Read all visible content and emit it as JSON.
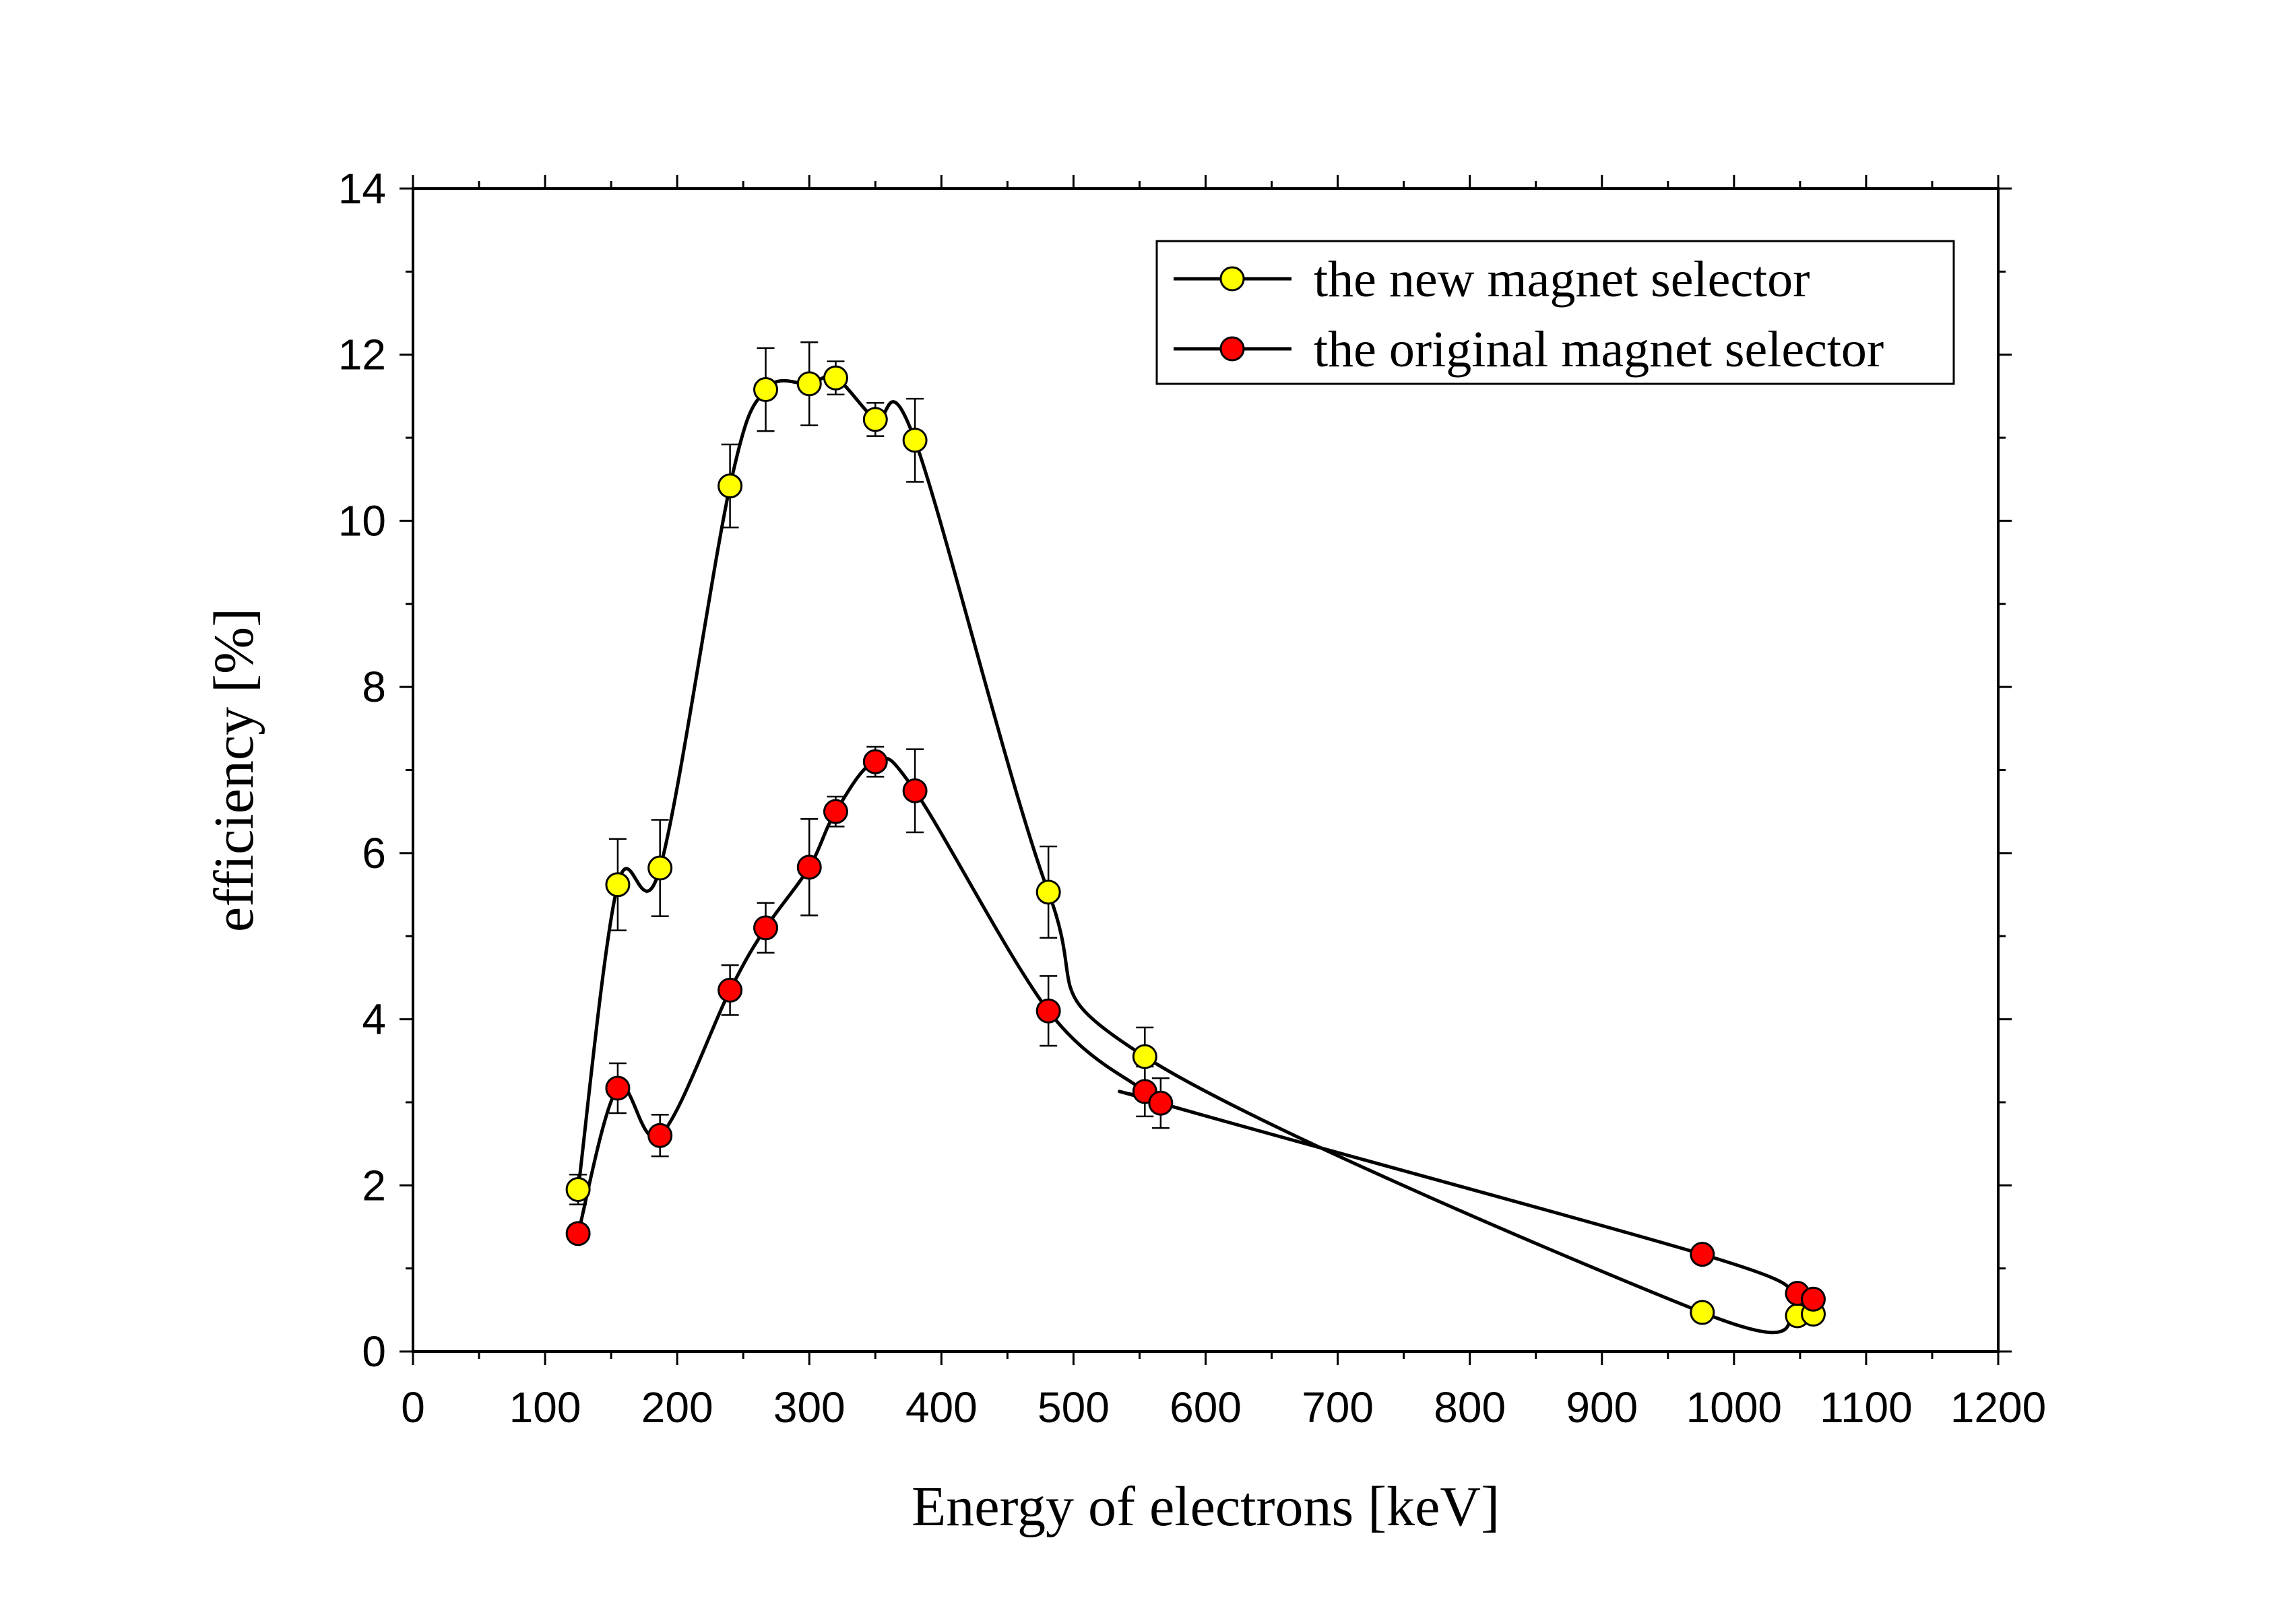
{
  "chart_data": {
    "type": "line",
    "xlabel": "Energy of electrons [keV]",
    "ylabel": "efficiency [%]",
    "xlim": [
      0,
      1200
    ],
    "ylim": [
      0,
      14
    ],
    "xticks": [
      0,
      100,
      200,
      300,
      400,
      500,
      600,
      700,
      800,
      900,
      1000,
      1100,
      1200
    ],
    "yticks": [
      0,
      2,
      4,
      6,
      8,
      10,
      12,
      14
    ],
    "grid": false,
    "legend_position": "top-right",
    "series": [
      {
        "name": "the new magnet selector",
        "marker_color": "#ffff00",
        "x": [
          125,
          155,
          187,
          240,
          267,
          300,
          320,
          350,
          380,
          481,
          554,
          976,
          1048,
          1060
        ],
        "y": [
          1.95,
          5.62,
          5.82,
          10.42,
          11.58,
          11.65,
          11.72,
          11.22,
          10.97,
          5.53,
          3.55,
          0.47,
          0.43,
          0.45
        ],
        "err": [
          0.18,
          0.55,
          0.58,
          0.5,
          0.5,
          0.5,
          0.2,
          0.2,
          0.5,
          0.55,
          0.35,
          0.08,
          0.08,
          0.08
        ]
      },
      {
        "name": "the original magnet selector",
        "marker_color": "#ff0000",
        "x": [
          125,
          155,
          187,
          240,
          267,
          300,
          320,
          350,
          380,
          481,
          554,
          566,
          976,
          1048,
          1060
        ],
        "y": [
          1.42,
          3.17,
          2.6,
          4.35,
          5.1,
          5.83,
          6.5,
          7.1,
          6.75,
          4.1,
          3.13,
          2.99,
          1.17,
          0.7,
          0.63
        ],
        "err": [
          0.1,
          0.3,
          0.25,
          0.3,
          0.3,
          0.58,
          0.18,
          0.18,
          0.5,
          0.42,
          0.3,
          0.3,
          0.1,
          0.1,
          0.1
        ]
      }
    ]
  }
}
